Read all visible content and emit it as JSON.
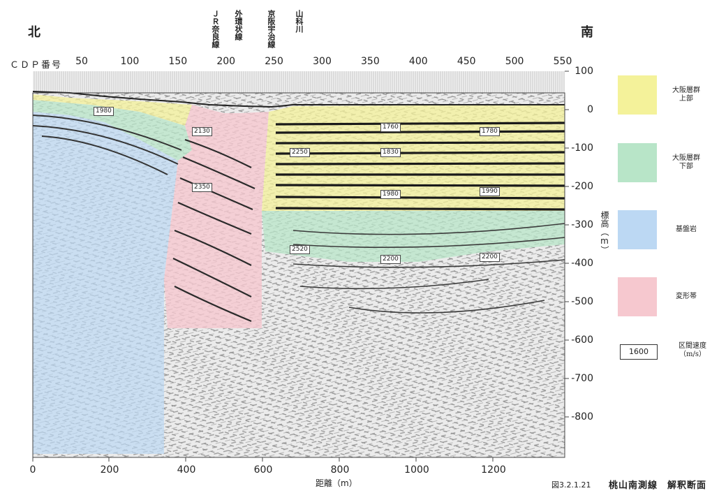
{
  "directions": {
    "north": "北",
    "south": "南"
  },
  "landmarks": [
    "ＪＲ奈良線",
    "外環状線",
    "京阪宇治線",
    "山科川"
  ],
  "cdp_axis": {
    "label": "ＣＤＰ番号",
    "ticks": [
      "50",
      "100",
      "150",
      "200",
      "250",
      "300",
      "350",
      "400",
      "450",
      "500",
      "550"
    ]
  },
  "elevation_axis": {
    "label": "標高（m）",
    "ticks": [
      "100",
      "0",
      "-100",
      "-200",
      "-300",
      "-400",
      "-500",
      "-600",
      "-700",
      "-800"
    ]
  },
  "distance_axis": {
    "label": "距離（m）",
    "ticks": [
      "0",
      "200",
      "400",
      "600",
      "800",
      "1000",
      "1200"
    ]
  },
  "velocities": [
    "1980",
    "2130",
    "2350",
    "2250",
    "2520",
    "1760",
    "1830",
    "1980",
    "2200",
    "1780",
    "1990",
    "2200"
  ],
  "legend": [
    {
      "label": "大阪層群\n上部",
      "color": "#f4f29a"
    },
    {
      "label": "大阪層群\n下部",
      "color": "#b8e5c8"
    },
    {
      "label": "基盤岩",
      "color": "#bcd8f3"
    },
    {
      "label": "変形帯",
      "color": "#f6c8cf"
    }
  ],
  "velocity_legend": {
    "value": "1600",
    "label": "区間速度\n（m/s）"
  },
  "figure_number": "図3.2.1.21",
  "title": "桃山南測線　解釈断面"
}
